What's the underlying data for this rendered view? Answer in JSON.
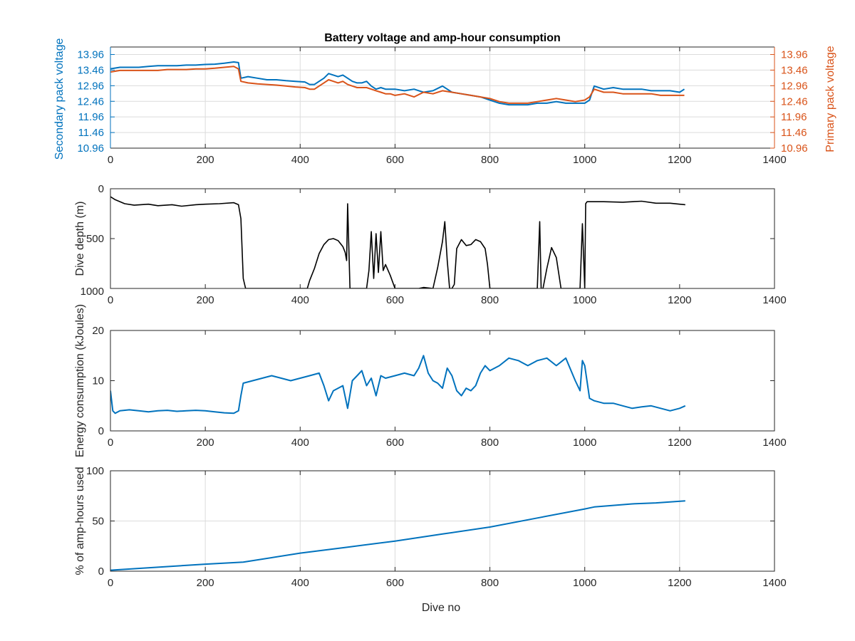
{
  "chart_data": [
    {
      "type": "line",
      "title": "Battery voltage and amp-hour consumption",
      "xlabel": "",
      "ylabel_left": "Secondary pack voltage",
      "ylabel_right": "Primary pack voltage",
      "xlim": [
        0,
        1400
      ],
      "ylim": [
        10.96,
        14.2
      ],
      "xticks": [
        "0",
        "200",
        "400",
        "600",
        "800",
        "1000",
        "1200",
        "1400"
      ],
      "yticks": [
        "10.96",
        "11.46",
        "11.96",
        "12.46",
        "12.96",
        "13.46",
        "13.96"
      ],
      "grid": true,
      "colors": {
        "secondary": "#0072bd",
        "primary": "#d95319",
        "axis": "#262626"
      },
      "series": [
        {
          "name": "Secondary pack voltage",
          "axis": "left",
          "x": [
            0,
            20,
            40,
            60,
            80,
            100,
            120,
            140,
            160,
            180,
            200,
            220,
            240,
            260,
            270,
            275,
            290,
            310,
            330,
            350,
            370,
            390,
            410,
            420,
            430,
            440,
            450,
            460,
            470,
            480,
            490,
            500,
            510,
            520,
            530,
            540,
            550,
            560,
            570,
            580,
            590,
            600,
            620,
            640,
            660,
            680,
            700,
            720,
            740,
            760,
            780,
            800,
            820,
            840,
            860,
            880,
            900,
            920,
            940,
            960,
            980,
            1000,
            1010,
            1020,
            1040,
            1060,
            1080,
            1100,
            1120,
            1140,
            1160,
            1180,
            1200,
            1210
          ],
          "y": [
            13.5,
            13.55,
            13.55,
            13.55,
            13.58,
            13.6,
            13.6,
            13.6,
            13.62,
            13.62,
            13.64,
            13.65,
            13.68,
            13.72,
            13.7,
            13.2,
            13.25,
            13.2,
            13.15,
            13.15,
            13.12,
            13.1,
            13.08,
            13.0,
            13.0,
            13.1,
            13.2,
            13.35,
            13.3,
            13.25,
            13.3,
            13.2,
            13.1,
            13.05,
            13.05,
            13.1,
            12.95,
            12.85,
            12.9,
            12.85,
            12.85,
            12.85,
            12.8,
            12.85,
            12.75,
            12.8,
            12.95,
            12.75,
            12.7,
            12.65,
            12.6,
            12.5,
            12.4,
            12.35,
            12.35,
            12.35,
            12.4,
            12.4,
            12.45,
            12.4,
            12.4,
            12.4,
            12.5,
            12.95,
            12.85,
            12.9,
            12.85,
            12.85,
            12.85,
            12.8,
            12.8,
            12.8,
            12.75,
            12.85
          ]
        },
        {
          "name": "Primary pack voltage",
          "axis": "right",
          "x": [
            0,
            20,
            40,
            60,
            80,
            100,
            120,
            140,
            160,
            180,
            200,
            220,
            240,
            260,
            270,
            275,
            290,
            310,
            330,
            350,
            370,
            390,
            410,
            420,
            430,
            440,
            450,
            460,
            470,
            480,
            490,
            500,
            510,
            520,
            530,
            540,
            550,
            560,
            570,
            580,
            590,
            600,
            620,
            640,
            660,
            680,
            700,
            720,
            740,
            760,
            780,
            800,
            820,
            840,
            860,
            880,
            900,
            920,
            940,
            960,
            980,
            1000,
            1010,
            1020,
            1040,
            1060,
            1080,
            1100,
            1120,
            1140,
            1160,
            1180,
            1200,
            1210
          ],
          "y": [
            13.4,
            13.45,
            13.45,
            13.45,
            13.45,
            13.45,
            13.48,
            13.48,
            13.48,
            13.5,
            13.5,
            13.52,
            13.55,
            13.58,
            13.5,
            13.1,
            13.05,
            13.02,
            13.0,
            12.98,
            12.95,
            12.92,
            12.9,
            12.85,
            12.85,
            12.95,
            13.05,
            13.15,
            13.1,
            13.05,
            13.1,
            13.0,
            12.95,
            12.9,
            12.9,
            12.9,
            12.85,
            12.8,
            12.75,
            12.7,
            12.7,
            12.65,
            12.7,
            12.6,
            12.75,
            12.7,
            12.8,
            12.75,
            12.7,
            12.65,
            12.6,
            12.55,
            12.45,
            12.4,
            12.4,
            12.4,
            12.45,
            12.5,
            12.55,
            12.5,
            12.45,
            12.5,
            12.6,
            12.85,
            12.75,
            12.75,
            12.7,
            12.7,
            12.7,
            12.7,
            12.65,
            12.65,
            12.65,
            12.65
          ]
        }
      ]
    },
    {
      "type": "line",
      "title": "",
      "xlabel": "",
      "ylabel": "Dive depth (m)",
      "xlim": [
        0,
        1400
      ],
      "ylim": [
        0,
        1000
      ],
      "y_reversed": true,
      "xticks": [
        "0",
        "200",
        "400",
        "600",
        "800",
        "1000",
        "1200",
        "1400"
      ],
      "yticks": [
        "0",
        "500",
        "1000"
      ],
      "grid": false,
      "colors": {
        "line": "#000000"
      },
      "series": [
        {
          "x": [
            0,
            10,
            30,
            50,
            80,
            100,
            130,
            150,
            180,
            200,
            230,
            260,
            270,
            275,
            280,
            285,
            300,
            340,
            380,
            415,
            420,
            430,
            440,
            450,
            460,
            470,
            480,
            490,
            495,
            498,
            500,
            505,
            520,
            540,
            545,
            550,
            555,
            560,
            565,
            570,
            575,
            580,
            590,
            600,
            610,
            650,
            660,
            680,
            690,
            700,
            705,
            710,
            715,
            720,
            725,
            730,
            740,
            750,
            760,
            770,
            780,
            790,
            795,
            800,
            820,
            860,
            890,
            900,
            905,
            908,
            912,
            920,
            930,
            940,
            950,
            955,
            960,
            980,
            990,
            995,
            1000,
            1002,
            1005,
            1010,
            1040,
            1080,
            1120,
            1150,
            1180,
            1200,
            1212
          ],
          "y": [
            80,
            110,
            150,
            165,
            155,
            170,
            160,
            175,
            160,
            155,
            150,
            140,
            160,
            300,
            900,
            1000,
            1000,
            1000,
            1000,
            1000,
            920,
            800,
            650,
            560,
            510,
            500,
            520,
            580,
            640,
            720,
            150,
            1000,
            1000,
            1000,
            820,
            430,
            900,
            450,
            840,
            430,
            820,
            760,
            870,
            1000,
            1000,
            1000,
            990,
            1000,
            790,
            530,
            330,
            720,
            1000,
            1000,
            960,
            600,
            510,
            570,
            560,
            510,
            530,
            600,
            760,
            1000,
            1000,
            1000,
            1000,
            1000,
            330,
            1000,
            1000,
            800,
            590,
            690,
            1000,
            1000,
            1000,
            1000,
            1000,
            350,
            1000,
            150,
            130,
            130,
            130,
            135,
            125,
            145,
            145,
            155,
            160
          ]
        }
      ]
    },
    {
      "type": "line",
      "title": "",
      "xlabel": "",
      "ylabel": "Energy consumption (kJoules)",
      "xlim": [
        0,
        1400
      ],
      "ylim": [
        0,
        20
      ],
      "xticks": [
        "0",
        "200",
        "400",
        "600",
        "800",
        "1000",
        "1200",
        "1400"
      ],
      "yticks": [
        "0",
        "10",
        "20"
      ],
      "grid": false,
      "colors": {
        "line": "#0072bd"
      },
      "series": [
        {
          "x": [
            0,
            5,
            10,
            20,
            40,
            60,
            80,
            100,
            120,
            140,
            160,
            180,
            200,
            220,
            240,
            260,
            270,
            275,
            280,
            300,
            320,
            340,
            360,
            380,
            400,
            420,
            440,
            450,
            460,
            470,
            480,
            490,
            500,
            510,
            520,
            530,
            540,
            550,
            560,
            570,
            580,
            600,
            620,
            640,
            650,
            660,
            670,
            680,
            690,
            700,
            710,
            720,
            730,
            740,
            750,
            760,
            770,
            780,
            790,
            800,
            820,
            840,
            860,
            880,
            900,
            920,
            940,
            960,
            980,
            990,
            995,
            1000,
            1010,
            1020,
            1040,
            1060,
            1080,
            1100,
            1120,
            1140,
            1160,
            1180,
            1200,
            1212
          ],
          "y": [
            8,
            4,
            3.5,
            4,
            4.2,
            4,
            3.8,
            4,
            4.1,
            3.9,
            4,
            4.1,
            4,
            3.8,
            3.6,
            3.5,
            4,
            7,
            9.5,
            10,
            10.5,
            11,
            10.5,
            10,
            10.5,
            11,
            11.5,
            9,
            6,
            8,
            8.5,
            9,
            4.5,
            10,
            11,
            12,
            9,
            10.5,
            7,
            11,
            10.5,
            11,
            11.5,
            11,
            12.5,
            15,
            11.5,
            10,
            9.5,
            8.5,
            12.5,
            11,
            8,
            7,
            8.5,
            8,
            9,
            11.5,
            13,
            12,
            13,
            14.5,
            14,
            13,
            14,
            14.5,
            13,
            14.5,
            10,
            8,
            14,
            13,
            6.5,
            6,
            5.5,
            5.5,
            5,
            4.5,
            4.8,
            5,
            4.5,
            4,
            4.5,
            5
          ]
        }
      ]
    },
    {
      "type": "line",
      "title": "",
      "xlabel": "Dive no",
      "ylabel": "% of amp-hours used",
      "xlim": [
        0,
        1400
      ],
      "ylim": [
        0,
        100
      ],
      "xticks": [
        "0",
        "200",
        "400",
        "600",
        "800",
        "1000",
        "1200",
        "1400"
      ],
      "yticks": [
        "0",
        "50",
        "100"
      ],
      "grid": true,
      "colors": {
        "line": "#0072bd"
      },
      "series": [
        {
          "x": [
            0,
            100,
            200,
            280,
            400,
            500,
            600,
            700,
            800,
            900,
            1000,
            1020,
            1100,
            1150,
            1212
          ],
          "y": [
            1,
            4,
            7,
            9,
            18,
            24,
            30,
            37,
            44,
            53,
            62,
            64,
            67,
            68,
            70
          ]
        }
      ]
    }
  ]
}
